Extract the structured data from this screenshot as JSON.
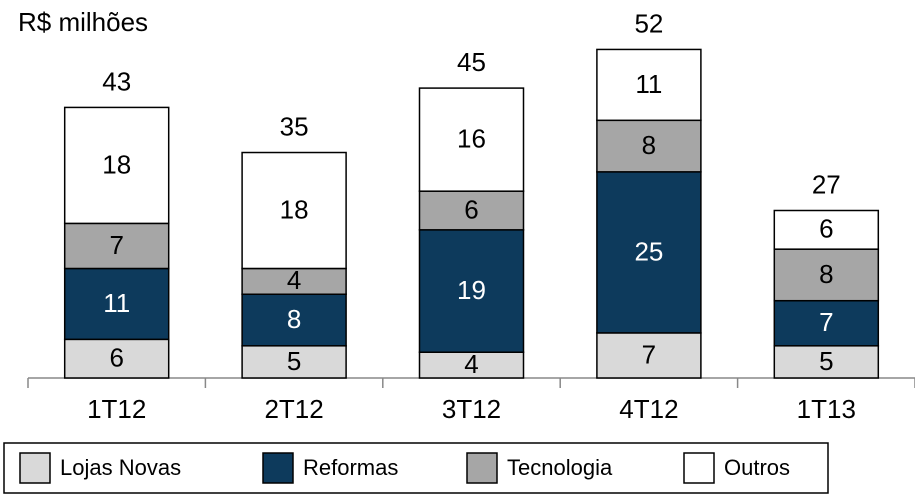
{
  "chart_data": {
    "type": "stacked-bar",
    "title": "R$ milhões",
    "categories": [
      "1T12",
      "2T12",
      "3T12",
      "4T12",
      "1T13"
    ],
    "series": [
      {
        "name": "Lojas Novas",
        "color": "#d9d9d9",
        "values": [
          6,
          5,
          4,
          7,
          5
        ]
      },
      {
        "name": "Reformas",
        "color": "#0d3a5c",
        "values": [
          11,
          8,
          19,
          25,
          7
        ]
      },
      {
        "name": "Tecnologia",
        "color": "#a6a6a6",
        "values": [
          7,
          4,
          6,
          8,
          8
        ]
      },
      {
        "name": "Outros",
        "color": "#ffffff",
        "values": [
          18,
          18,
          16,
          11,
          6
        ]
      }
    ],
    "totals": [
      43,
      35,
      45,
      52,
      27
    ],
    "legend": "bottom"
  }
}
